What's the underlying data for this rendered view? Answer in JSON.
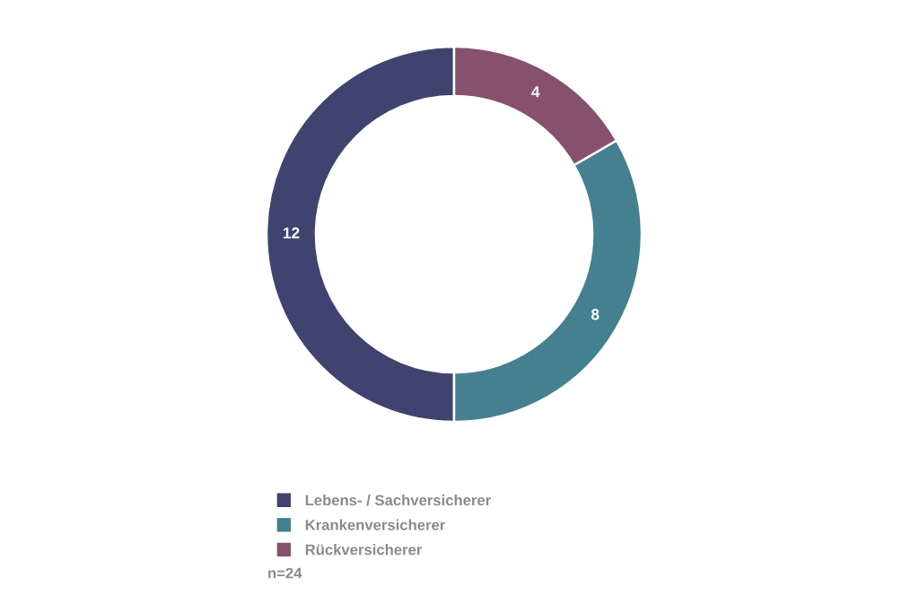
{
  "chart_data": {
    "type": "donut",
    "categories": [
      "Lebens- / Sachversicherer",
      "Krankenversicherer",
      "Rückversicherer"
    ],
    "values": [
      12,
      8,
      4
    ],
    "colors": [
      "#3e436f",
      "#44808f",
      "#87506f"
    ],
    "data_labels": true,
    "legend": "bottom",
    "annotations": [
      "n=24"
    ]
  }
}
